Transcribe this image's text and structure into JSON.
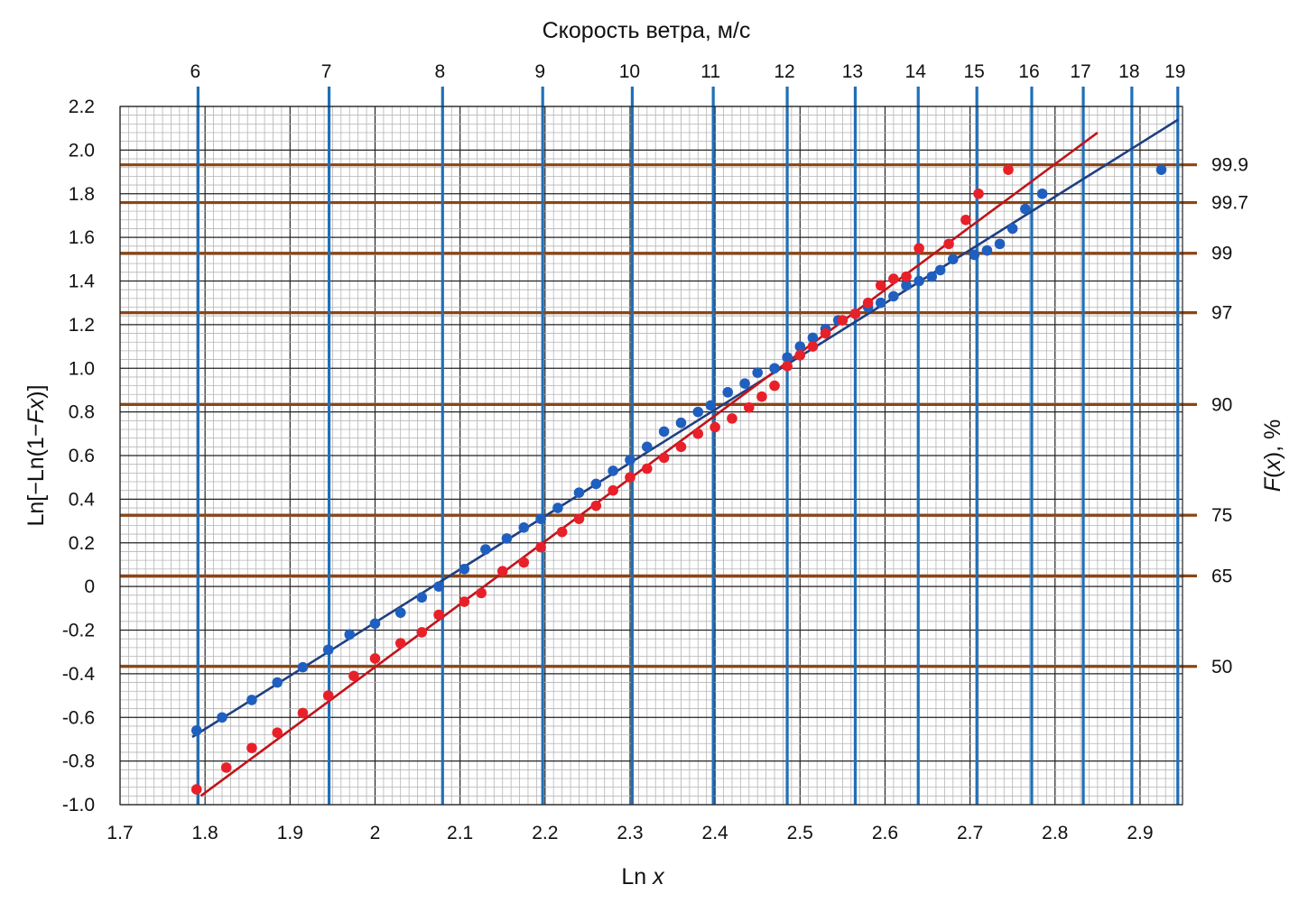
{
  "chart_data": {
    "type": "scatter",
    "title": "Скорость ветра, м/с",
    "xlabel": "Ln x",
    "ylabel": "Ln[−Ln(1−Fx)]",
    "y2label": "F(x), %",
    "xlim": [
      1.7,
      2.95
    ],
    "ylim": [
      -1.0,
      2.2
    ],
    "x_ticks": [
      "1.7",
      "1.8",
      "1.9",
      "2",
      "2.1",
      "2.2",
      "2.3",
      "2.4",
      "2.5",
      "2.6",
      "2.7",
      "2.8",
      "2.9"
    ],
    "y_ticks": [
      "-1.0",
      "-0.8",
      "-0.6",
      "-0.4",
      "-0.2",
      "0",
      "0.2",
      "0.4",
      "0.6",
      "0.8",
      "1.0",
      "1.2",
      "1.4",
      "1.6",
      "1.8",
      "2.0",
      "2.2"
    ],
    "grid": true,
    "top_axis": {
      "name": "Скорость ветра, м/с",
      "ticks": [
        "6",
        "7",
        "8",
        "9",
        "10",
        "11",
        "12",
        "13",
        "14",
        "15",
        "16",
        "17",
        "18",
        "19"
      ],
      "values": [
        6,
        7,
        8,
        9,
        10,
        11,
        12,
        13,
        14,
        15,
        16,
        17,
        18,
        19
      ],
      "color": "#1f6fb8"
    },
    "right_axis": {
      "name": "F(x), %",
      "ticks": [
        "99.9",
        "99.7",
        "99",
        "97",
        "90",
        "75",
        "65",
        "50"
      ],
      "values": [
        99.9,
        99.7,
        99,
        97,
        90,
        75,
        65,
        50
      ],
      "color": "#8b4513"
    },
    "series": [
      {
        "color": "#1f5fbf",
        "line_color": "#1f3f7f",
        "trend": {
          "x": [
            1.785,
            2.945
          ],
          "y": [
            -0.69,
            2.14
          ]
        },
        "x": [
          1.79,
          1.82,
          1.855,
          1.885,
          1.915,
          1.945,
          1.97,
          2.0,
          2.03,
          2.055,
          2.075,
          2.105,
          2.13,
          2.155,
          2.175,
          2.195,
          2.215,
          2.24,
          2.26,
          2.28,
          2.3,
          2.32,
          2.34,
          2.36,
          2.38,
          2.395,
          2.415,
          2.435,
          2.45,
          2.47,
          2.485,
          2.5,
          2.515,
          2.53,
          2.545,
          2.565,
          2.58,
          2.595,
          2.61,
          2.625,
          2.64,
          2.655,
          2.665,
          2.68,
          2.705,
          2.72,
          2.735,
          2.75,
          2.765,
          2.785,
          2.925
        ],
        "y": [
          -0.66,
          -0.6,
          -0.52,
          -0.44,
          -0.37,
          -0.29,
          -0.22,
          -0.17,
          -0.12,
          -0.05,
          0.0,
          0.08,
          0.17,
          0.22,
          0.27,
          0.31,
          0.36,
          0.43,
          0.47,
          0.53,
          0.58,
          0.64,
          0.71,
          0.75,
          0.8,
          0.83,
          0.89,
          0.93,
          0.98,
          1.0,
          1.05,
          1.1,
          1.14,
          1.18,
          1.22,
          1.25,
          1.28,
          1.3,
          1.33,
          1.38,
          1.4,
          1.42,
          1.45,
          1.5,
          1.52,
          1.54,
          1.57,
          1.64,
          1.73,
          1.8,
          1.91
        ]
      },
      {
        "color": "#e8202a",
        "line_color": "#c0141c",
        "trend": {
          "x": [
            1.795,
            2.85
          ],
          "y": [
            -0.96,
            2.08
          ]
        },
        "x": [
          1.79,
          1.825,
          1.855,
          1.885,
          1.915,
          1.945,
          1.975,
          2.0,
          2.03,
          2.055,
          2.075,
          2.105,
          2.125,
          2.15,
          2.175,
          2.195,
          2.22,
          2.24,
          2.26,
          2.28,
          2.3,
          2.32,
          2.34,
          2.36,
          2.38,
          2.4,
          2.42,
          2.44,
          2.455,
          2.47,
          2.485,
          2.5,
          2.515,
          2.53,
          2.55,
          2.565,
          2.58,
          2.595,
          2.61,
          2.625,
          2.64,
          2.675,
          2.695,
          2.71,
          2.745
        ],
        "y": [
          -0.93,
          -0.83,
          -0.74,
          -0.67,
          -0.58,
          -0.5,
          -0.41,
          -0.33,
          -0.26,
          -0.21,
          -0.13,
          -0.07,
          -0.03,
          0.07,
          0.11,
          0.18,
          0.25,
          0.31,
          0.37,
          0.44,
          0.5,
          0.54,
          0.59,
          0.64,
          0.7,
          0.73,
          0.77,
          0.82,
          0.87,
          0.92,
          1.01,
          1.06,
          1.1,
          1.16,
          1.22,
          1.25,
          1.3,
          1.38,
          1.41,
          1.42,
          1.55,
          1.57,
          1.68,
          1.8,
          1.91
        ]
      }
    ]
  }
}
